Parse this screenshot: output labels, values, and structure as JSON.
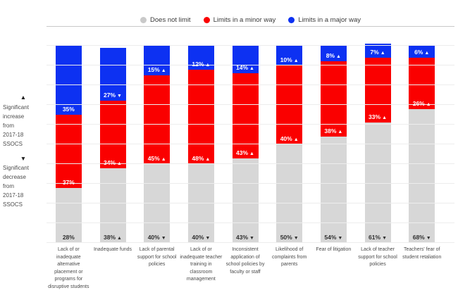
{
  "notes": {
    "increase": {
      "symbol": "▲",
      "text": "Significant\nincrease\nfrom\n2017-18 SSOCS"
    },
    "decrease": {
      "symbol": "▼",
      "text": "Significant\ndecrease\nfrom\n2017-18 SSOCS"
    }
  },
  "chart_data": {
    "type": "bar",
    "stacked": true,
    "percent_stacked": true,
    "unit": "%",
    "legend_position": "top",
    "grid": true,
    "ylim": [
      0,
      110
    ],
    "gridline_step": 10,
    "arrow_up_symbol": "▲",
    "arrow_down_symbol": "▼",
    "categories": [
      "Lack of or inadequate alternative placement or programs for disruptive students",
      "Inadequate funds",
      "Lack of parental support for school policies",
      "Lack of or inadequate teacher training in classroom management",
      "Inconsistent application of school policies by faculty or staff",
      "Likelihood of complaints from parents",
      "Fear of litigation",
      "Lack of teacher support for school policies",
      "Teachers' fear of student retaliation"
    ],
    "series": [
      {
        "name": "Does not limit",
        "color": "#d7d7d7",
        "legend_dot_color": "#c9c9c9",
        "label_color": "#2f2f2f",
        "values": [
          28,
          38,
          40,
          40,
          43,
          50,
          54,
          61,
          68
        ],
        "change_vs_2017_18": [
          "",
          "up",
          "down",
          "down",
          "down",
          "down",
          "down",
          "down",
          "down"
        ]
      },
      {
        "name": "Limits in a minor way",
        "color": "#fa0000",
        "legend_dot_color": "#fa0000",
        "label_color": "#ffffff",
        "values": [
          37,
          34,
          45,
          48,
          43,
          40,
          38,
          33,
          26
        ],
        "change_vs_2017_18": [
          "",
          "up",
          "up",
          "up",
          "up",
          "up",
          "up",
          "up",
          "up"
        ]
      },
      {
        "name": "Limits in a major way",
        "color": "#0d31f2",
        "legend_dot_color": "#0d31f2",
        "label_color": "#ffffff",
        "values": [
          35,
          27,
          15,
          12,
          14,
          10,
          8,
          7,
          6
        ],
        "change_vs_2017_18": [
          "",
          "down",
          "up",
          "up",
          "up",
          "up",
          "up",
          "up",
          "up"
        ]
      }
    ]
  }
}
